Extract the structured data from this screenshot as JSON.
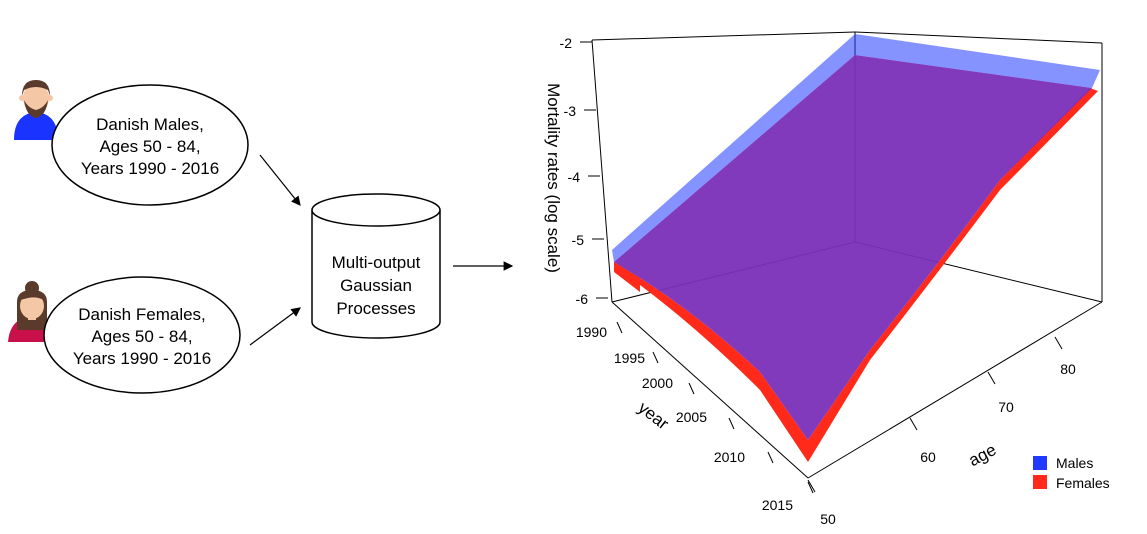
{
  "nodes": {
    "males": {
      "line1": "Danish Males,",
      "line2": "Ages 50 - 84,",
      "line3": "Years 1990 - 2016"
    },
    "females": {
      "line1": "Danish Females,",
      "line2": "Ages 50 - 84,",
      "line3": "Years 1990 - 2016"
    },
    "model": {
      "line1": "Multi-output",
      "line2": "Gaussian",
      "line3": "Processes"
    }
  },
  "icons": [
    "male-avatar-icon",
    "female-avatar-icon"
  ],
  "colors": {
    "males": "#1f3bff",
    "females": "#ff2a1a",
    "overlap": "#7a2fb8"
  },
  "chart_data": {
    "type": "surface3d",
    "zlabel": "Mortality rates (log scale)",
    "xlabel": "year",
    "ylabel": "age",
    "z_ticks": [
      "-2",
      "-3",
      "-4",
      "-5",
      "-6"
    ],
    "year_ticks": [
      "1990",
      "1995",
      "2000",
      "2005",
      "2010",
      "2015"
    ],
    "age_ticks": [
      "50",
      "60",
      "70",
      "80"
    ],
    "legend": [
      {
        "name": "Males",
        "color": "#1f3bff"
      },
      {
        "name": "Females",
        "color": "#ff2a1a"
      }
    ],
    "legend_position": "bottom-right"
  }
}
